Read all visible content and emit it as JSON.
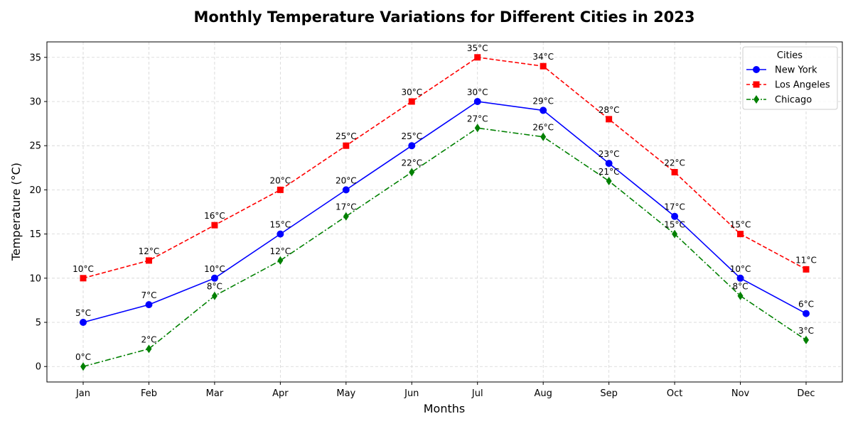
{
  "chart_data": {
    "type": "line",
    "title": "Monthly Temperature Variations for Different Cities in 2023",
    "xlabel": "Months",
    "ylabel": "Temperature (°C)",
    "categories": [
      "Jan",
      "Feb",
      "Mar",
      "Apr",
      "May",
      "Jun",
      "Jul",
      "Aug",
      "Sep",
      "Oct",
      "Nov",
      "Dec"
    ],
    "ylim": [
      -1.75,
      36.75
    ],
    "yticks": [
      0,
      5,
      10,
      15,
      20,
      25,
      30,
      35
    ],
    "grid": true,
    "legend": {
      "title": "Cities",
      "placement": "top-right"
    },
    "label_suffix": "°C",
    "series": [
      {
        "name": "New York",
        "color": "#0000ff",
        "linestyle": "solid",
        "marker": "circle",
        "values": [
          5,
          7,
          10,
          15,
          20,
          25,
          30,
          29,
          23,
          17,
          10,
          6
        ]
      },
      {
        "name": "Los Angeles",
        "color": "#ff0000",
        "linestyle": "dashed",
        "marker": "square",
        "values": [
          10,
          12,
          16,
          20,
          25,
          30,
          35,
          34,
          28,
          22,
          15,
          11
        ]
      },
      {
        "name": "Chicago",
        "color": "#008000",
        "linestyle": "dashdot",
        "marker": "diamond",
        "values": [
          0,
          2,
          8,
          12,
          17,
          22,
          27,
          26,
          21,
          15,
          8,
          3
        ]
      }
    ]
  }
}
